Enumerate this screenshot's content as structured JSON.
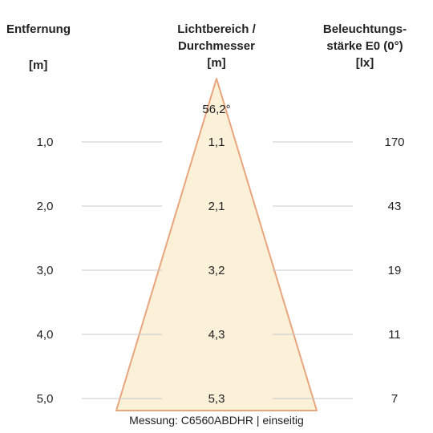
{
  "headers": {
    "distance": {
      "title": "Entfernung",
      "unit": "[m]"
    },
    "diameter": {
      "title_line1": "Lichtbereich /",
      "title_line2": "Durchmesser",
      "unit": "[m]"
    },
    "illuminance": {
      "title_line1": "Beleuchtungs-",
      "title_line2": "stärke E0 (0°)",
      "unit": "[lx]"
    }
  },
  "beam_angle": "56,2°",
  "rows": [
    {
      "distance": "1,0",
      "diameter": "1,1",
      "illuminance": "170"
    },
    {
      "distance": "2,0",
      "diameter": "2,1",
      "illuminance": "43"
    },
    {
      "distance": "3,0",
      "diameter": "3,2",
      "illuminance": "19"
    },
    {
      "distance": "4,0",
      "diameter": "4,3",
      "illuminance": "11"
    },
    {
      "distance": "5,0",
      "diameter": "5,3",
      "illuminance": "7"
    }
  ],
  "footer": "Messung: C6560ABDHR | einseitig",
  "colors": {
    "cone_fill": "#fbf1d9",
    "cone_stroke": "#e8a57e",
    "rule": "#c8c8c8"
  }
}
